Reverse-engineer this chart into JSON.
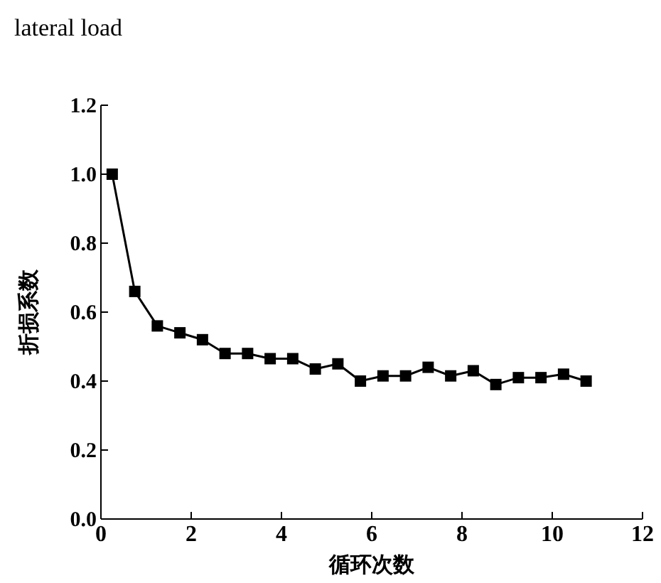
{
  "chart_data": {
    "type": "line",
    "title": "lateral load",
    "xlabel": "循环次数",
    "ylabel": "折损系数",
    "x": [
      0.25,
      0.75,
      1.25,
      1.75,
      2.25,
      2.75,
      3.25,
      3.75,
      4.25,
      4.75,
      5.25,
      5.75,
      6.25,
      6.75,
      7.25,
      7.75,
      8.25,
      8.75,
      9.25,
      9.75,
      10.25,
      10.75
    ],
    "series": [
      {
        "color": "#000000",
        "values": [
          1.0,
          0.66,
          0.56,
          0.54,
          0.52,
          0.48,
          0.48,
          0.465,
          0.465,
          0.435,
          0.45,
          0.4,
          0.415,
          0.415,
          0.44,
          0.415,
          0.43,
          0.39,
          0.41,
          0.41,
          0.42,
          0.4
        ]
      }
    ],
    "xlim": [
      0,
      12
    ],
    "xticks": [
      0,
      2,
      4,
      6,
      8,
      10,
      12
    ],
    "ylim": [
      0,
      1.2
    ],
    "yticks": [
      {
        "value": 0,
        "label": "0.0"
      },
      {
        "value": 0.2,
        "label": "0.2"
      },
      {
        "value": 0.4,
        "label": "0.4"
      },
      {
        "value": 0.6,
        "label": "0.6"
      },
      {
        "value": 0.8,
        "label": "0.8"
      },
      {
        "value": 1,
        "label": "1.0"
      },
      {
        "value": 1.2,
        "label": "1.2"
      }
    ],
    "marker": "square",
    "line_style": "solid"
  }
}
